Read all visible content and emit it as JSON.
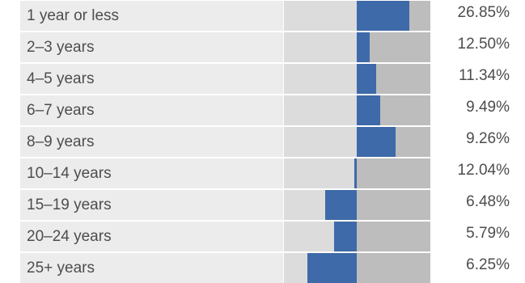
{
  "chart_data": {
    "type": "bar",
    "categories": [
      "1 year or less",
      "2–3 years",
      "4–5 years",
      "6–7 years",
      "8–9 years",
      "10–14 years",
      "15–19 years",
      "20–24 years",
      "25+ years"
    ],
    "values_label": [
      "26.85%",
      "12.50%",
      "11.34%",
      "9.49%",
      "9.26%",
      "12.04%",
      "6.48%",
      "5.79%",
      "6.25%"
    ],
    "values": [
      26.85,
      12.5,
      11.34,
      9.49,
      9.26,
      12.04,
      6.48,
      5.79,
      6.25
    ],
    "deviation": [
      15.8,
      4.0,
      5.8,
      7.0,
      11.8,
      -0.8,
      -9.5,
      -6.8,
      -15.0
    ],
    "deviation_range": [
      -22,
      22
    ]
  }
}
